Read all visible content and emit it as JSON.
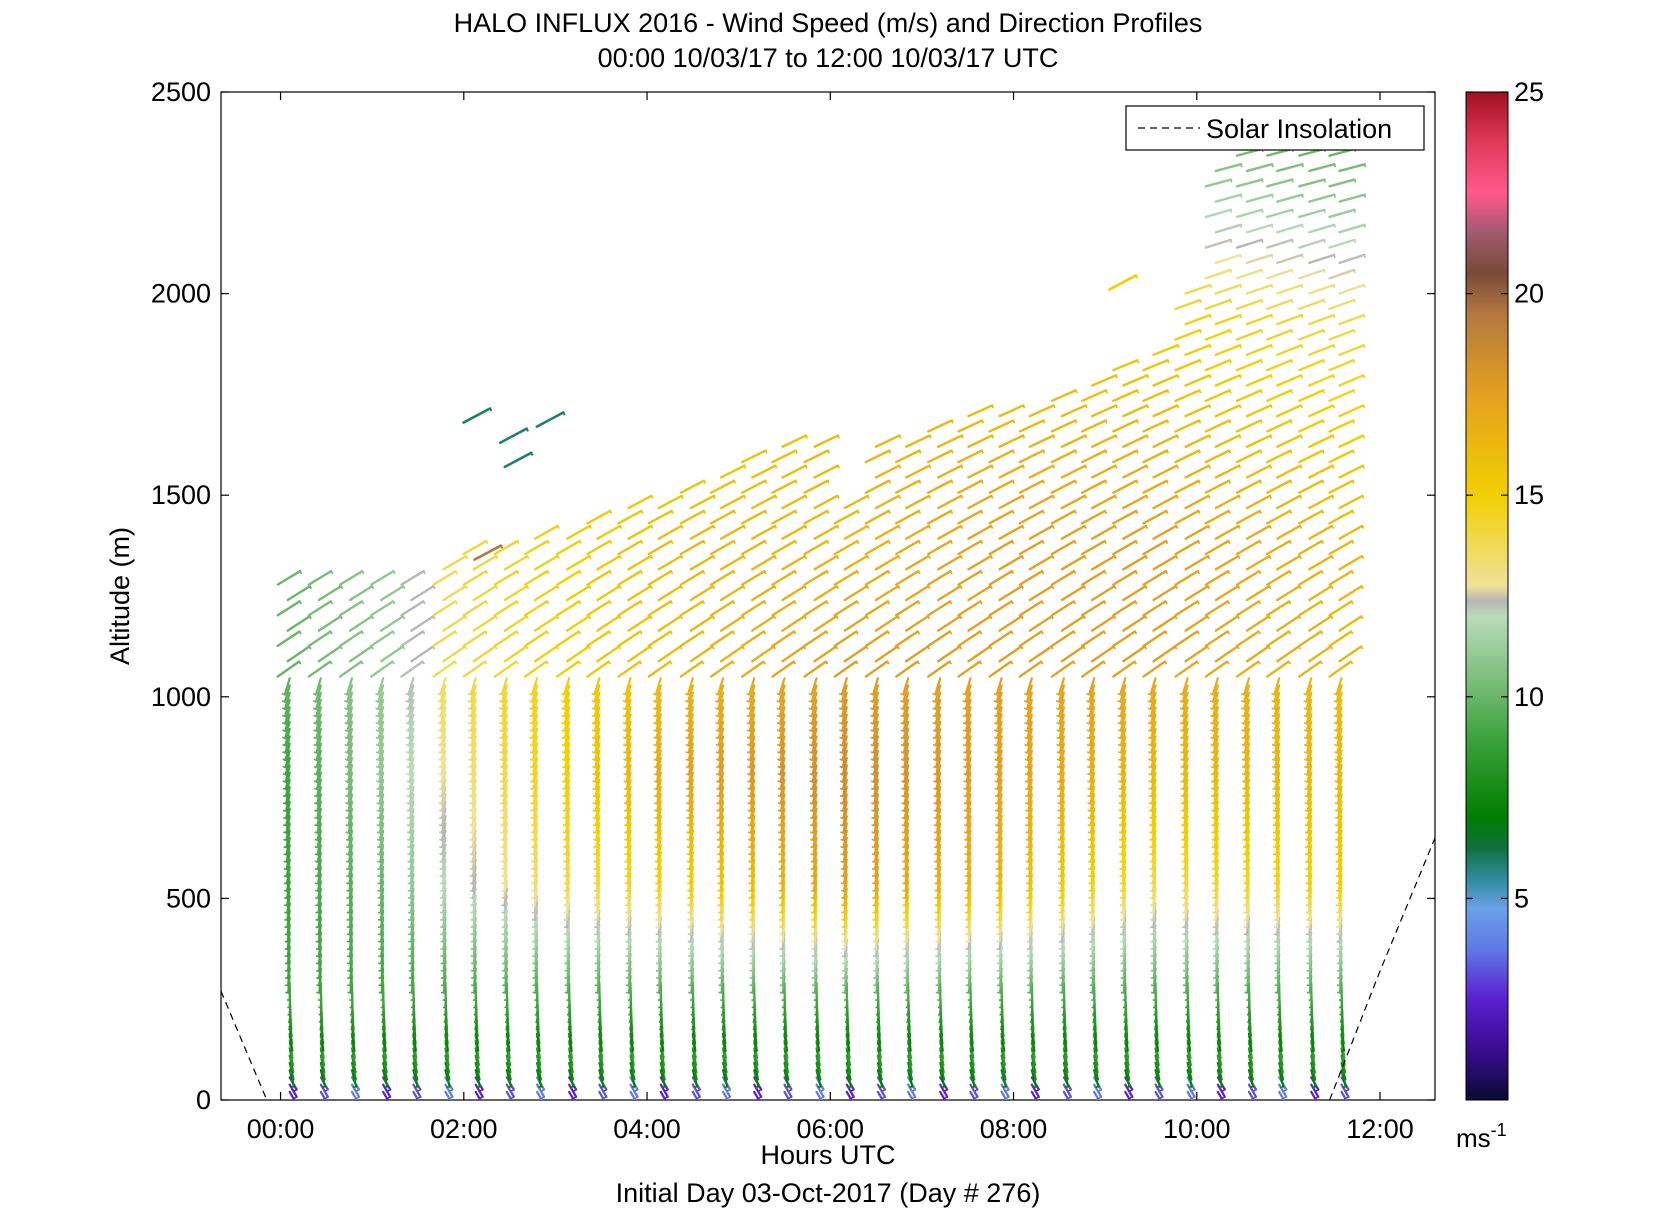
{
  "chart_data": {
    "type": "barbs",
    "title": "HALO INFLUX 2016 - Wind Speed (m/s) and Direction Profiles",
    "subtitle": "00:00 10/03/17 to 12:00 10/03/17  UTC",
    "xlabel": "Hours UTC",
    "ylabel": "Altitude (m)",
    "footer": "Initial Day 03-Oct-2017 (Day # 276)",
    "xlim_hours": [
      -0.65,
      12.6
    ],
    "ylim": [
      0,
      2500
    ],
    "xticks": [
      "00:00",
      "02:00",
      "04:00",
      "06:00",
      "08:00",
      "10:00",
      "12:00"
    ],
    "yticks": [
      0,
      500,
      1000,
      1500,
      2000,
      2500
    ],
    "legend": {
      "label": "Solar Insolation",
      "position": "top-right"
    },
    "colorbar": {
      "min": 0,
      "max": 25,
      "ticks": [
        5,
        10,
        15,
        20,
        25
      ],
      "unit_base": "ms",
      "unit_exp": "-1"
    },
    "profile_times_hours": [
      0.1,
      0.44,
      0.78,
      1.12,
      1.45,
      1.8,
      2.13,
      2.47,
      2.8,
      3.15,
      3.48,
      3.82,
      4.15,
      4.5,
      4.83,
      5.17,
      5.5,
      5.85,
      6.18,
      6.52,
      6.85,
      7.2,
      7.53,
      7.87,
      8.2,
      8.55,
      8.88,
      9.22,
      9.55,
      9.9,
      10.23,
      10.57,
      10.9,
      11.25,
      11.58
    ],
    "profile_top_m": [
      1320,
      1320,
      1330,
      1330,
      1330,
      1340,
      1380,
      1400,
      1420,
      1430,
      1480,
      1500,
      1520,
      1550,
      1600,
      1620,
      1650,
      1660,
      1500,
      1650,
      1670,
      1700,
      1720,
      1740,
      1750,
      1760,
      1800,
      1850,
      1900,
      2050,
      2350,
      2380,
      2400,
      2450,
      2400
    ],
    "speed_profile_ms": [
      {
        "h": 0.1,
        "speed": [
          5,
          9,
          9,
          9,
          10,
          10,
          10,
          10,
          9,
          9
        ]
      },
      {
        "h": 1.12,
        "speed": [
          5,
          9,
          10,
          11,
          11,
          11,
          11,
          11,
          10,
          10
        ]
      },
      {
        "h": 1.8,
        "speed": [
          5,
          9,
          12,
          13,
          14,
          14,
          14,
          13,
          12,
          11
        ]
      },
      {
        "h": 3.15,
        "speed": [
          5,
          9,
          14,
          15,
          15,
          15,
          15,
          14,
          13,
          12
        ]
      },
      {
        "h": 4.5,
        "speed": [
          5,
          9,
          15,
          17,
          16,
          16,
          15,
          15,
          13,
          12
        ]
      },
      {
        "h": 6.18,
        "speed": [
          5,
          9,
          17,
          18,
          17,
          16,
          16,
          15,
          12,
          11
        ]
      },
      {
        "h": 7.87,
        "speed": [
          5,
          9,
          16,
          17,
          17,
          17,
          16,
          15,
          12,
          11
        ]
      },
      {
        "h": 9.55,
        "speed": [
          5,
          9,
          14,
          16,
          17,
          17,
          16,
          15,
          12,
          9
        ]
      },
      {
        "h": 11.58,
        "speed": [
          5,
          9,
          15,
          16,
          16,
          16,
          15,
          14,
          11,
          9
        ]
      }
    ],
    "isolated_barbs": [
      {
        "h": 2.15,
        "alt": 1700,
        "speed": 6
      },
      {
        "h": 2.55,
        "alt": 1650,
        "speed": 6
      },
      {
        "h": 2.95,
        "alt": 1690,
        "speed": 6
      },
      {
        "h": 2.6,
        "alt": 1590,
        "speed": 6
      },
      {
        "h": 2.27,
        "alt": 1360,
        "speed": 19
      },
      {
        "h": 9.2,
        "alt": 2030,
        "speed": 15
      }
    ]
  }
}
